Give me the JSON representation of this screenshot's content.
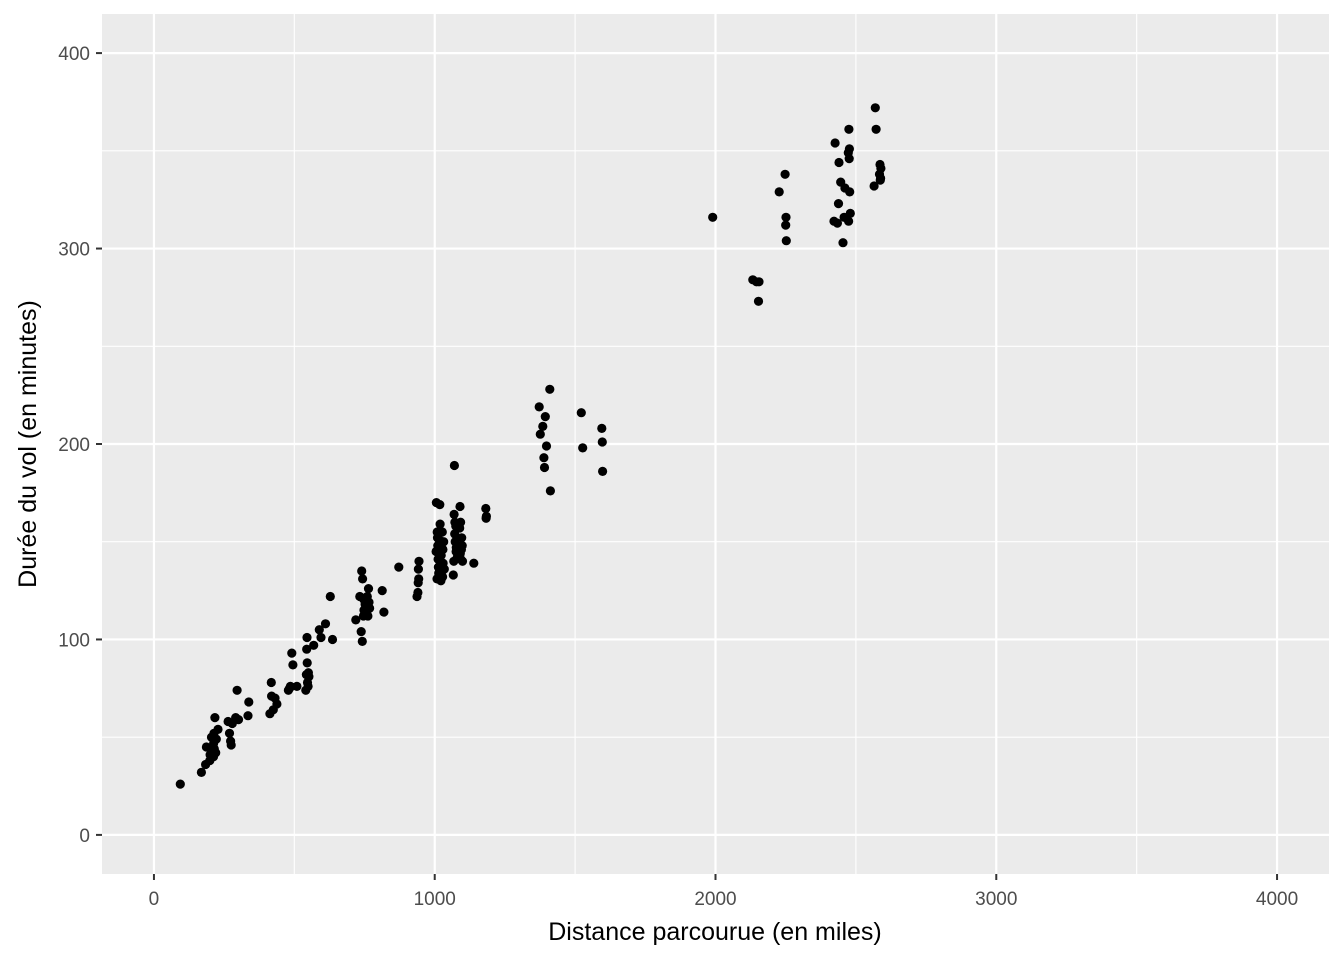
{
  "chart_data": {
    "type": "scatter",
    "title": "",
    "xlabel": "Distance parcourue (en miles)",
    "ylabel": "Durée du vol (en minutes)",
    "xlim": [
      -185,
      4185
    ],
    "ylim": [
      -20,
      420
    ],
    "x_ticks": [
      0,
      1000,
      2000,
      3000,
      4000
    ],
    "x_tick_labels": [
      "0",
      "1000",
      "2000",
      "3000",
      "4000"
    ],
    "y_ticks": [
      0,
      100,
      200,
      300,
      400
    ],
    "y_tick_labels": [
      "0",
      "100",
      "200",
      "300",
      "400"
    ],
    "grid": true,
    "legend": "none",
    "colors": {
      "panel": "#ebebeb",
      "grid": "#ffffff",
      "point": "#000000"
    },
    "points": [
      [
        94,
        26
      ],
      [
        169,
        32
      ],
      [
        184,
        36
      ],
      [
        187,
        45
      ],
      [
        199,
        38
      ],
      [
        200,
        41
      ],
      [
        205,
        50
      ],
      [
        209,
        43
      ],
      [
        212,
        40
      ],
      [
        213,
        47
      ],
      [
        214,
        52
      ],
      [
        215,
        44
      ],
      [
        217,
        60
      ],
      [
        220,
        42
      ],
      [
        222,
        49
      ],
      [
        228,
        54
      ],
      [
        264,
        58
      ],
      [
        269,
        52
      ],
      [
        273,
        48
      ],
      [
        275,
        46
      ],
      [
        279,
        57
      ],
      [
        291,
        60
      ],
      [
        296,
        74
      ],
      [
        301,
        59
      ],
      [
        335,
        61
      ],
      [
        338,
        68
      ],
      [
        413,
        62
      ],
      [
        418,
        78
      ],
      [
        419,
        71
      ],
      [
        425,
        64
      ],
      [
        431,
        70
      ],
      [
        438,
        67
      ],
      [
        479,
        74
      ],
      [
        483,
        75
      ],
      [
        486,
        76
      ],
      [
        491,
        93
      ],
      [
        495,
        87
      ],
      [
        509,
        76
      ],
      [
        541,
        74
      ],
      [
        543,
        82
      ],
      [
        544,
        95
      ],
      [
        545,
        101
      ],
      [
        546,
        88
      ],
      [
        547,
        78
      ],
      [
        549,
        76
      ],
      [
        550,
        83
      ],
      [
        552,
        81
      ],
      [
        569,
        97
      ],
      [
        589,
        105
      ],
      [
        595,
        101
      ],
      [
        611,
        108
      ],
      [
        628,
        122
      ],
      [
        636,
        100
      ],
      [
        719,
        110
      ],
      [
        733,
        122
      ],
      [
        738,
        104
      ],
      [
        740,
        135
      ],
      [
        742,
        99
      ],
      [
        743,
        131
      ],
      [
        745,
        121
      ],
      [
        746,
        112
      ],
      [
        748,
        115
      ],
      [
        750,
        120
      ],
      [
        752,
        118
      ],
      [
        760,
        122
      ],
      [
        762,
        112
      ],
      [
        764,
        126
      ],
      [
        766,
        119
      ],
      [
        768,
        116
      ],
      [
        813,
        125
      ],
      [
        819,
        114
      ],
      [
        872,
        137
      ],
      [
        937,
        122
      ],
      [
        940,
        124
      ],
      [
        941,
        129
      ],
      [
        942,
        136
      ],
      [
        943,
        131
      ],
      [
        944,
        140
      ],
      [
        1005,
        145
      ],
      [
        1006,
        170
      ],
      [
        1008,
        131
      ],
      [
        1009,
        155
      ],
      [
        1010,
        152
      ],
      [
        1011,
        148
      ],
      [
        1012,
        141
      ],
      [
        1013,
        137
      ],
      [
        1014,
        134
      ],
      [
        1015,
        133
      ],
      [
        1016,
        151
      ],
      [
        1017,
        144
      ],
      [
        1018,
        169
      ],
      [
        1019,
        159
      ],
      [
        1020,
        135
      ],
      [
        1021,
        149
      ],
      [
        1022,
        130
      ],
      [
        1023,
        143
      ],
      [
        1024,
        147
      ],
      [
        1026,
        138
      ],
      [
        1027,
        155
      ],
      [
        1028,
        132
      ],
      [
        1029,
        146
      ],
      [
        1030,
        139
      ],
      [
        1032,
        150
      ],
      [
        1034,
        136
      ],
      [
        1066,
        133
      ],
      [
        1068,
        140
      ],
      [
        1069,
        164
      ],
      [
        1070,
        189
      ],
      [
        1071,
        154
      ],
      [
        1072,
        160
      ],
      [
        1073,
        150
      ],
      [
        1075,
        158
      ],
      [
        1076,
        145
      ],
      [
        1077,
        147
      ],
      [
        1079,
        152
      ],
      [
        1080,
        142
      ],
      [
        1089,
        157
      ],
      [
        1090,
        168
      ],
      [
        1091,
        144
      ],
      [
        1092,
        160
      ],
      [
        1093,
        141
      ],
      [
        1095,
        146
      ],
      [
        1096,
        152
      ],
      [
        1098,
        148
      ],
      [
        1099,
        140
      ],
      [
        1139,
        139
      ],
      [
        1182,
        167
      ],
      [
        1183,
        162
      ],
      [
        1184,
        163
      ],
      [
        1372,
        219
      ],
      [
        1376,
        205
      ],
      [
        1385,
        209
      ],
      [
        1389,
        193
      ],
      [
        1391,
        188
      ],
      [
        1394,
        214
      ],
      [
        1398,
        199
      ],
      [
        1410,
        228
      ],
      [
        1412,
        176
      ],
      [
        1522,
        216
      ],
      [
        1527,
        198
      ],
      [
        1595,
        208
      ],
      [
        1597,
        201
      ],
      [
        1598,
        186
      ],
      [
        1990,
        316
      ],
      [
        2133,
        284
      ],
      [
        2146,
        283
      ],
      [
        2153,
        273
      ],
      [
        2155,
        283
      ],
      [
        2227,
        329
      ],
      [
        2248,
        338
      ],
      [
        2250,
        312
      ],
      [
        2251,
        316
      ],
      [
        2252,
        304
      ],
      [
        2422,
        314
      ],
      [
        2426,
        354
      ],
      [
        2434,
        313
      ],
      [
        2438,
        323
      ],
      [
        2440,
        344
      ],
      [
        2446,
        334
      ],
      [
        2454,
        303
      ],
      [
        2458,
        316
      ],
      [
        2461,
        331
      ],
      [
        2473,
        349
      ],
      [
        2474,
        314
      ],
      [
        2475,
        361
      ],
      [
        2476,
        346
      ],
      [
        2477,
        351
      ],
      [
        2478,
        329
      ],
      [
        2480,
        318
      ],
      [
        2565,
        332
      ],
      [
        2569,
        372
      ],
      [
        2572,
        361
      ],
      [
        2584,
        338
      ],
      [
        2586,
        343
      ],
      [
        2587,
        335
      ],
      [
        2588,
        336
      ],
      [
        2589,
        341
      ]
    ]
  }
}
